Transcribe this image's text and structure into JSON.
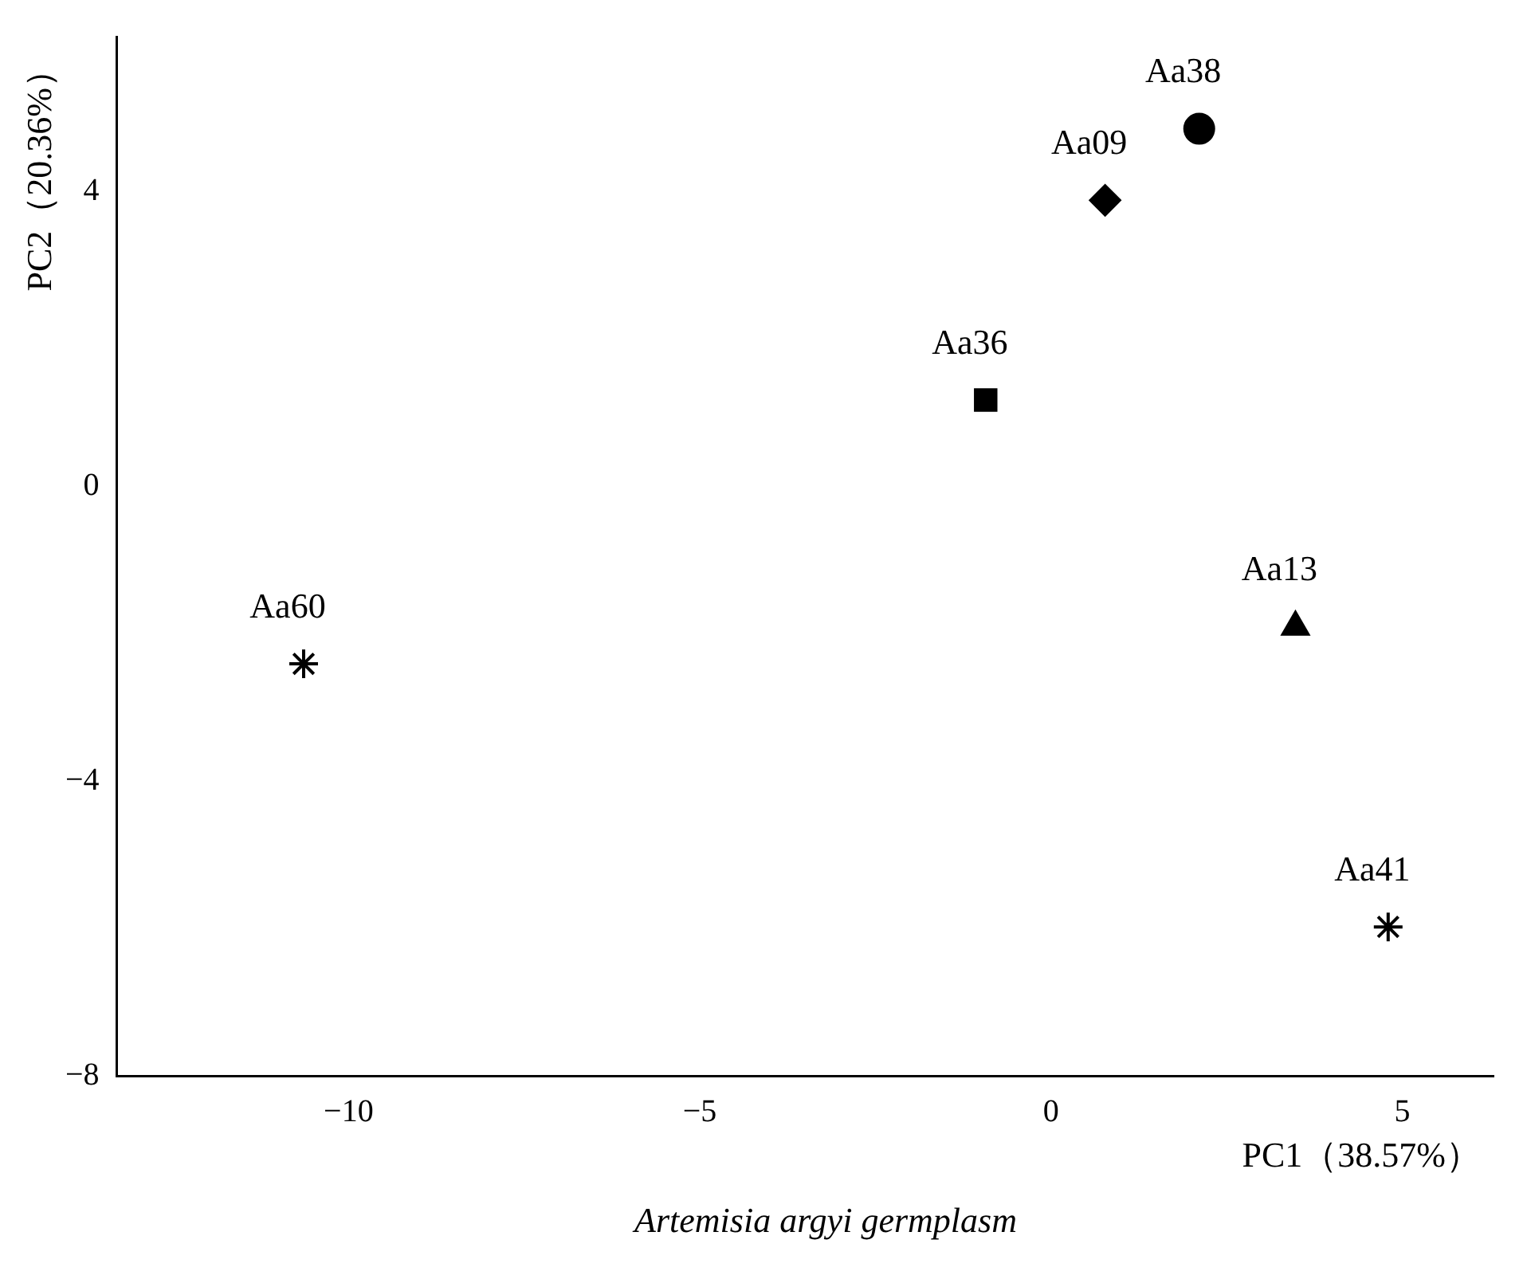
{
  "chart_data": {
    "type": "scatter",
    "xlabel": "PC1（38.57%）",
    "ylabel": "PC2（20.36%）",
    "annotations": [
      "Artemisia argyi germplasm"
    ],
    "xlim": [
      -13.3,
      6.3
    ],
    "xticks": [
      -10,
      -5,
      0,
      5
    ],
    "ylim": [
      -8,
      6.1
    ],
    "yticks": [
      -8,
      -4,
      0,
      4
    ],
    "grid": false,
    "legend": false,
    "series": [
      {
        "name": "Aa38",
        "color": "#000000",
        "marker": "circle",
        "x": [
          2.11
        ],
        "values": [
          4.85
        ]
      },
      {
        "name": "Aa09",
        "color": "#000000",
        "marker": "diamond",
        "x": [
          0.77
        ],
        "values": [
          3.88
        ]
      },
      {
        "name": "Aa36",
        "color": "#000000",
        "marker": "square",
        "x": [
          -0.93
        ],
        "values": [
          1.17
        ]
      },
      {
        "name": "Aa13",
        "color": "#000000",
        "marker": "triangle",
        "x": [
          3.48
        ],
        "values": [
          -1.91
        ]
      },
      {
        "name": "Aa41",
        "color": "#000000",
        "marker": "cross",
        "x": [
          4.8
        ],
        "values": [
          -5.98
        ]
      },
      {
        "name": "Aa60",
        "color": "#000000",
        "marker": "cross",
        "x": [
          -10.64
        ],
        "values": [
          -2.41
        ]
      }
    ]
  }
}
